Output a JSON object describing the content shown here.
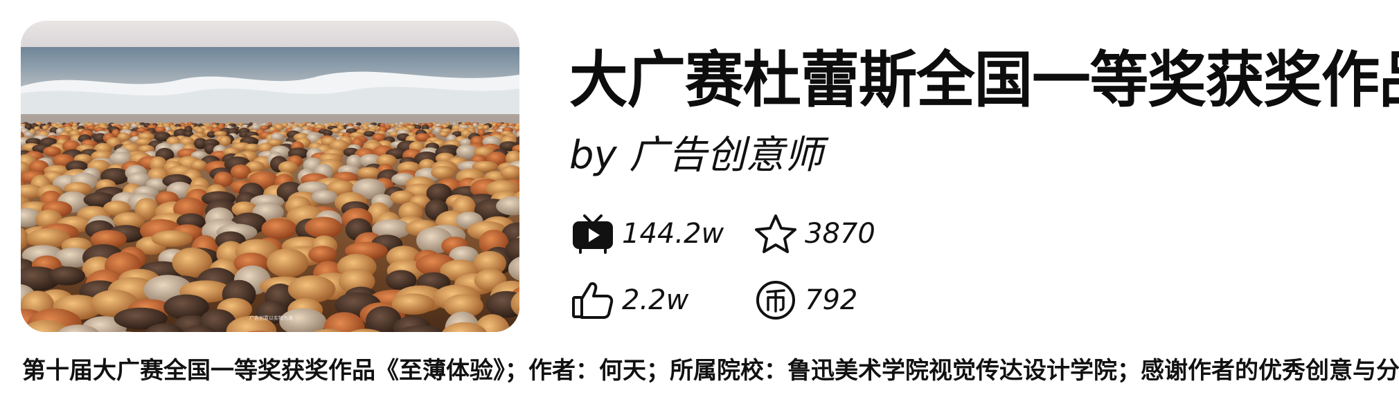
{
  "video": {
    "title": "大广赛杜蕾斯全国一等奖获奖作品",
    "author": "by 广告创意师",
    "thumbnail_caption": "广告创意以实物为准",
    "stats": {
      "views": "144.2w",
      "favorites": "3870",
      "likes": "2.2w",
      "coins": "792"
    },
    "description": "第十届大广赛全国一等奖获奖作品《至薄体验》；作者：何天；所属院校：鲁迅美术学院视觉传达设计学院；感谢作者的优秀创意与分享~"
  },
  "icons": {
    "views": "tv-play-icon",
    "favorites": "star-icon",
    "likes": "thumbs-up-icon",
    "coins": "coin-icon"
  },
  "colors": {
    "background": "#ffffff",
    "text": "#111111",
    "icon": "#111111"
  }
}
